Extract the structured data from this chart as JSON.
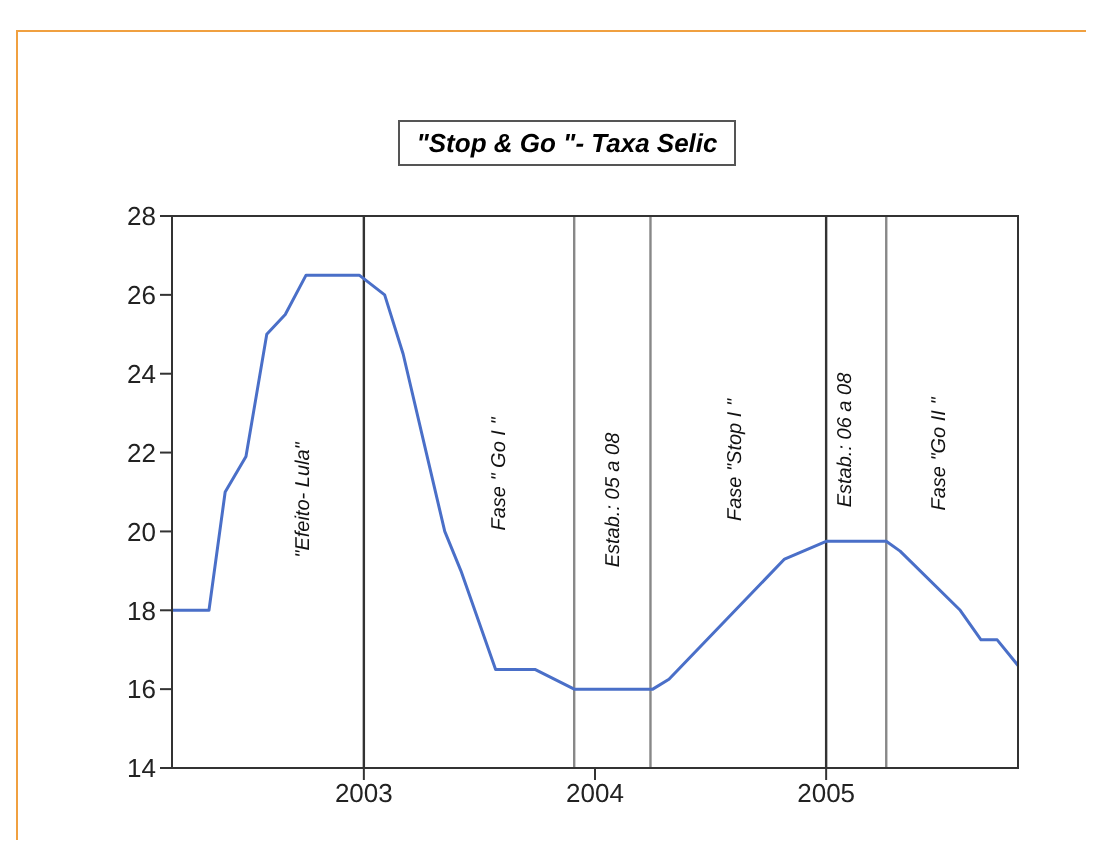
{
  "chart_data": {
    "type": "line",
    "title": "\"Stop & Go \"- Taxa Selic",
    "x": [
      2002.17,
      2002.33,
      2002.4,
      2002.49,
      2002.58,
      2002.66,
      2002.75,
      2002.98,
      2003.09,
      2003.17,
      2003.27,
      2003.35,
      2003.42,
      2003.57,
      2003.74,
      2003.91,
      2004.25,
      2004.32,
      2004.82,
      2005.0,
      2005.26,
      2005.32,
      2005.58,
      2005.67,
      2005.74,
      2005.83
    ],
    "series": [
      {
        "color": "#4a6fc8",
        "values": [
          18,
          18,
          21,
          21.9,
          25,
          25.5,
          26.5,
          26.5,
          26,
          24.5,
          22,
          20,
          19,
          16.5,
          16.5,
          16,
          16,
          16.25,
          19.3,
          19.75,
          19.75,
          19.5,
          18,
          17.25,
          17.25,
          16.6
        ]
      }
    ],
    "xlim": [
      2002.17,
      2005.83
    ],
    "xticks": [
      2003,
      2004,
      2005
    ],
    "ylim": [
      14,
      28
    ],
    "yticks": [
      14,
      16,
      18,
      20,
      22,
      24,
      26,
      28
    ],
    "grid": false,
    "legend": false,
    "marker": "none",
    "line_style": "solid",
    "ref_lines": [
      {
        "axis": "x",
        "value": 2003.0,
        "color": "#333333"
      },
      {
        "axis": "x",
        "value": 2003.91,
        "color": "#888888"
      },
      {
        "axis": "x",
        "value": 2004.24,
        "color": "#888888"
      },
      {
        "axis": "x",
        "value": 2005.0,
        "color": "#333333"
      },
      {
        "axis": "x",
        "value": 2005.26,
        "color": "#888888"
      }
    ],
    "annotations": [
      "\"Efeito- Lula\"",
      "Fase \" Go I \"",
      "Estab.: 05 a 08",
      "Fase \"Stop I \"",
      "Estab.: 06 a 08",
      "Fase \"Go II \""
    ]
  }
}
